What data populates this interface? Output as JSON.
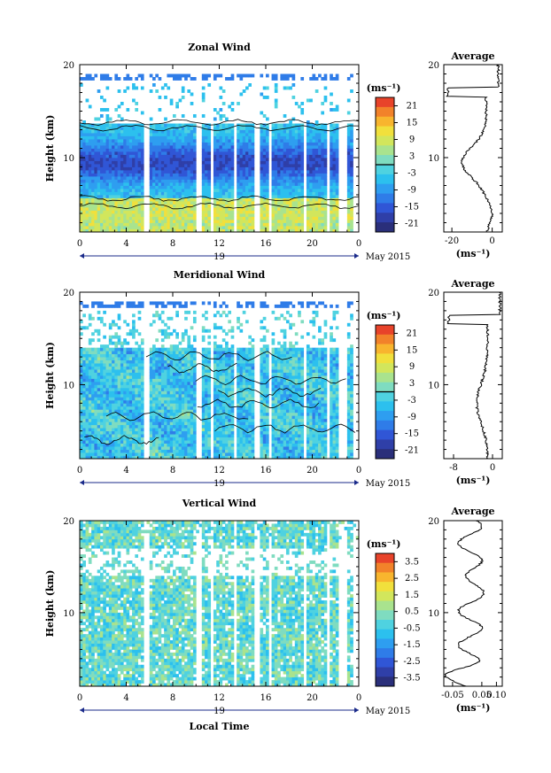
{
  "figure": {
    "month_label": "May 2015",
    "xlabel": "Local Time",
    "ylabel": "Height (km)",
    "unit_label": "(ms⁻¹)",
    "profile_title": "Average",
    "day_label": "19"
  },
  "chart_data": [
    {
      "type": "heatmap",
      "title": "Zonal Wind",
      "xlabel": "",
      "ylabel": "Height (km)",
      "x_ticks": [
        "0",
        "4",
        "8",
        "12",
        "16",
        "20",
        "0"
      ],
      "x_range_hours": [
        0,
        24
      ],
      "y_ticks": [
        "20",
        "10"
      ],
      "ylim_km": [
        2,
        20
      ],
      "colorbar": {
        "label": "(ms⁻¹)",
        "ticks": [
          "21",
          "15",
          "9",
          "3",
          "-3",
          "-9",
          "-15",
          "-21"
        ],
        "range": [
          -24,
          24
        ],
        "zero_line": true
      },
      "profile": {
        "title": "Average",
        "xticks": [
          "-20",
          "0"
        ],
        "xlim": [
          -24,
          5
        ],
        "xlabel": "(ms⁻¹)"
      }
    },
    {
      "type": "heatmap",
      "title": "Meridional Wind",
      "xlabel": "",
      "ylabel": "Height (km)",
      "x_ticks": [
        "0",
        "4",
        "8",
        "12",
        "16",
        "20",
        "0"
      ],
      "x_range_hours": [
        0,
        24
      ],
      "y_ticks": [
        "20",
        "10"
      ],
      "ylim_km": [
        2,
        20
      ],
      "colorbar": {
        "label": "(ms⁻¹)",
        "ticks": [
          "21",
          "15",
          "9",
          "3",
          "-3",
          "-9",
          "-15",
          "-21"
        ],
        "range": [
          -24,
          24
        ],
        "zero_line": true
      },
      "profile": {
        "title": "Average",
        "xticks": [
          "-8",
          "0"
        ],
        "xlim": [
          -10,
          2
        ],
        "xlabel": "(ms⁻¹)"
      }
    },
    {
      "type": "heatmap",
      "title": "Vertical Wind",
      "xlabel": "Local Time",
      "ylabel": "Height (km)",
      "x_ticks": [
        "0",
        "4",
        "8",
        "12",
        "16",
        "20",
        "0"
      ],
      "x_range_hours": [
        0,
        24
      ],
      "y_ticks": [
        "20",
        "10"
      ],
      "ylim_km": [
        2,
        20
      ],
      "colorbar": {
        "label": "(ms⁻¹)",
        "ticks": [
          "3.5",
          "2.5",
          "1.5",
          "0.5",
          "-0.5",
          "-1.5",
          "-2.5",
          "-3.5"
        ],
        "range": [
          -4,
          4
        ],
        "zero_line": false
      },
      "profile": {
        "title": "Average",
        "xticks": [
          "-0.05",
          "0.05",
          "0.10"
        ],
        "xlim": [
          -0.08,
          0.12
        ],
        "xlabel": "(ms⁻¹)"
      }
    }
  ]
}
